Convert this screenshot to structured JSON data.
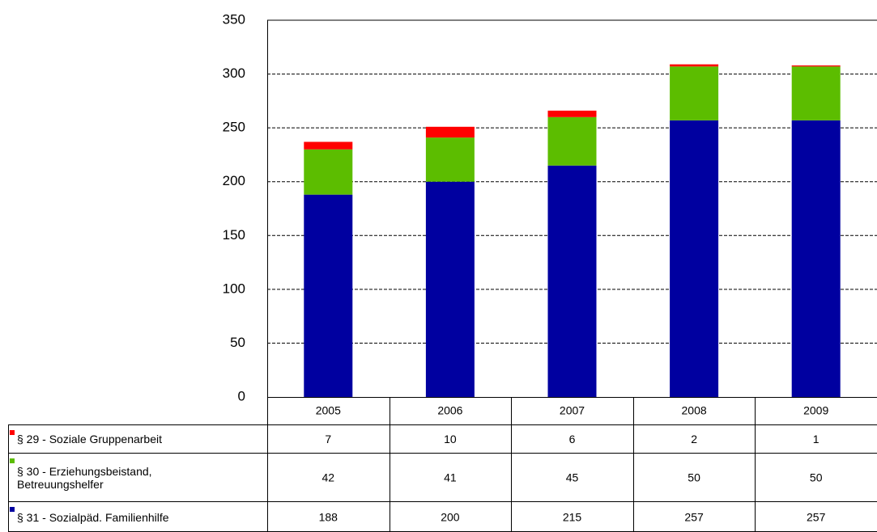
{
  "chart_data": {
    "type": "stacked_bar",
    "categories": [
      "2005",
      "2006",
      "2007",
      "2008",
      "2009"
    ],
    "series": [
      {
        "name": "§ 29 - Soziale Gruppenarbeit",
        "color": "#ff0000",
        "values": [
          7,
          10,
          6,
          2,
          1
        ]
      },
      {
        "name": "§ 30 - Erziehungsbeistand, Betreuungshelfer",
        "color": "#5cbd00",
        "values": [
          42,
          41,
          45,
          50,
          50
        ]
      },
      {
        "name": "§ 31 - Sozialpäd. Familienhilfe",
        "color": "#0000a0",
        "values": [
          188,
          200,
          215,
          257,
          257
        ]
      }
    ],
    "ylim": [
      0,
      350
    ],
    "yticks": [
      0,
      50,
      100,
      150,
      200,
      250,
      300,
      350
    ],
    "grid": true,
    "data_table": true
  }
}
